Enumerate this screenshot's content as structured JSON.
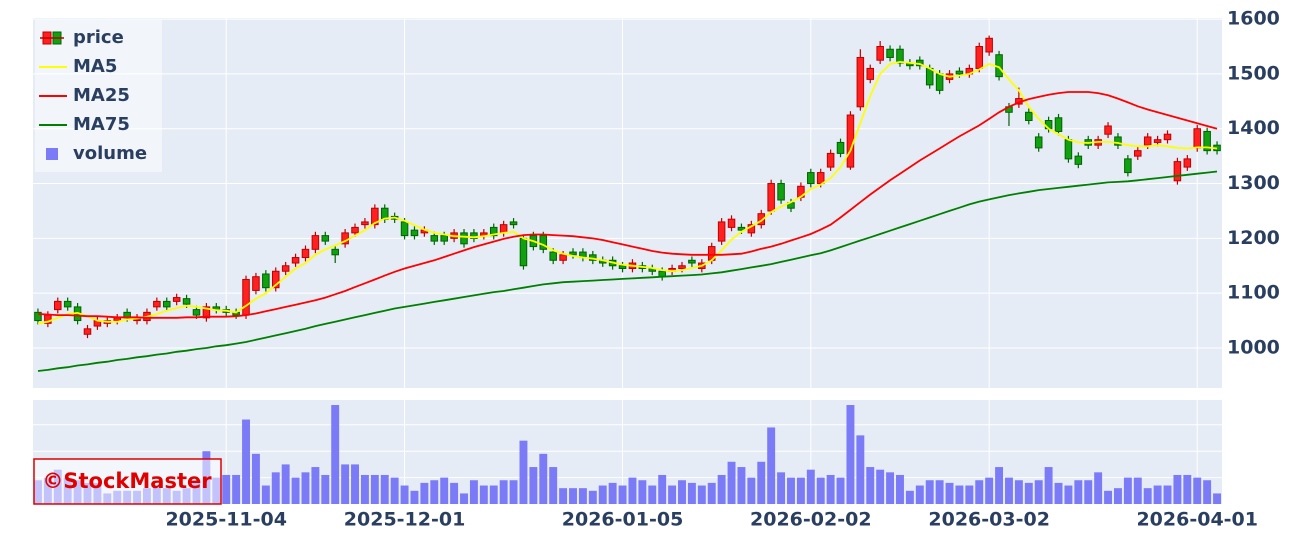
{
  "chart_data": {
    "type": "candlestick",
    "x": [
      "2025-10-06",
      "2025-10-07",
      "2025-10-08",
      "2025-10-09",
      "2025-10-10",
      "2025-10-14",
      "2025-10-15",
      "2025-10-16",
      "2025-10-17",
      "2025-10-20",
      "2025-10-21",
      "2025-10-22",
      "2025-10-23",
      "2025-10-24",
      "2025-10-27",
      "2025-10-28",
      "2025-10-29",
      "2025-10-30",
      "2025-10-31",
      "2025-11-04",
      "2025-11-05",
      "2025-11-06",
      "2025-11-07",
      "2025-11-10",
      "2025-11-11",
      "2025-11-12",
      "2025-11-13",
      "2025-11-14",
      "2025-11-17",
      "2025-11-18",
      "2025-11-19",
      "2025-11-20",
      "2025-11-21",
      "2025-11-25",
      "2025-11-26",
      "2025-11-27",
      "2025-11-28",
      "2025-12-01",
      "2025-12-02",
      "2025-12-03",
      "2025-12-04",
      "2025-12-05",
      "2025-12-08",
      "2025-12-09",
      "2025-12-10",
      "2025-12-11",
      "2025-12-12",
      "2025-12-15",
      "2025-12-16",
      "2025-12-17",
      "2025-12-18",
      "2025-12-19",
      "2025-12-22",
      "2025-12-23",
      "2025-12-24",
      "2025-12-25",
      "2025-12-26",
      "2025-12-29",
      "2025-12-30",
      "2026-01-05",
      "2026-01-06",
      "2026-01-07",
      "2026-01-08",
      "2026-01-09",
      "2026-01-13",
      "2026-01-14",
      "2026-01-15",
      "2026-01-16",
      "2026-01-19",
      "2026-01-20",
      "2026-01-21",
      "2026-01-22",
      "2026-01-23",
      "2026-01-26",
      "2026-01-27",
      "2026-01-28",
      "2026-01-29",
      "2026-01-30",
      "2026-02-02",
      "2026-02-03",
      "2026-02-04",
      "2026-02-05",
      "2026-02-06",
      "2026-02-09",
      "2026-02-10",
      "2026-02-12",
      "2026-02-13",
      "2026-02-16",
      "2026-02-17",
      "2026-02-18",
      "2026-02-19",
      "2026-02-20",
      "2026-02-24",
      "2026-02-25",
      "2026-02-26",
      "2026-02-27",
      "2026-03-02",
      "2026-03-03",
      "2026-03-04",
      "2026-03-05",
      "2026-03-06",
      "2026-03-09",
      "2026-03-10",
      "2026-03-11",
      "2026-03-12",
      "2026-03-13",
      "2026-03-16",
      "2026-03-17",
      "2026-03-18",
      "2026-03-19",
      "2026-03-23",
      "2026-03-24",
      "2026-03-25",
      "2026-03-26",
      "2026-03-27",
      "2026-03-30",
      "2026-03-31",
      "2026-04-01",
      "2026-04-02",
      "2026-04-03"
    ],
    "price": {
      "name": "price",
      "increasing_color": "#ff2020",
      "increasing_line": "#c00000",
      "decreasing_color": "#10a010",
      "decreasing_line": "#006400",
      "open": [
        1065,
        1045,
        1070,
        1085,
        1075,
        1025,
        1040,
        1045,
        1050,
        1065,
        1050,
        1050,
        1075,
        1085,
        1085,
        1090,
        1070,
        1055,
        1075,
        1070,
        1065,
        1060,
        1105,
        1135,
        1110,
        1140,
        1155,
        1165,
        1180,
        1205,
        1180,
        1190,
        1210,
        1225,
        1225,
        1255,
        1240,
        1230,
        1215,
        1210,
        1205,
        1205,
        1200,
        1210,
        1210,
        1205,
        1220,
        1210,
        1230,
        1200,
        1205,
        1205,
        1175,
        1160,
        1175,
        1175,
        1170,
        1160,
        1160,
        1150,
        1145,
        1150,
        1145,
        1140,
        1140,
        1145,
        1160,
        1145,
        1160,
        1195,
        1220,
        1220,
        1210,
        1225,
        1250,
        1300,
        1265,
        1275,
        1320,
        1300,
        1330,
        1375,
        1330,
        1440,
        1490,
        1525,
        1545,
        1545,
        1520,
        1525,
        1510,
        1500,
        1490,
        1505,
        1500,
        1510,
        1540,
        1535,
        1440,
        1445,
        1430,
        1385,
        1415,
        1420,
        1380,
        1350,
        1380,
        1370,
        1390,
        1385,
        1345,
        1350,
        1370,
        1375,
        1380,
        1305,
        1330,
        1365,
        1395,
        1370
      ],
      "high": [
        1072,
        1067,
        1092,
        1092,
        1082,
        1042,
        1057,
        1057,
        1062,
        1072,
        1062,
        1072,
        1092,
        1092,
        1099,
        1097,
        1077,
        1082,
        1082,
        1077,
        1072,
        1132,
        1137,
        1142,
        1147,
        1157,
        1172,
        1187,
        1212,
        1212,
        1187,
        1217,
        1227,
        1237,
        1262,
        1262,
        1247,
        1237,
        1222,
        1222,
        1212,
        1212,
        1217,
        1217,
        1217,
        1217,
        1227,
        1232,
        1237,
        1207,
        1212,
        1212,
        1182,
        1177,
        1182,
        1182,
        1177,
        1167,
        1167,
        1157,
        1162,
        1157,
        1152,
        1147,
        1152,
        1157,
        1167,
        1162,
        1192,
        1237,
        1242,
        1227,
        1232,
        1252,
        1307,
        1307,
        1272,
        1302,
        1327,
        1327,
        1362,
        1382,
        1432,
        1545,
        1517,
        1560,
        1552,
        1552,
        1527,
        1532,
        1517,
        1507,
        1507,
        1512,
        1517,
        1557,
        1570,
        1542,
        1447,
        1475,
        1437,
        1392,
        1422,
        1427,
        1387,
        1357,
        1387,
        1387,
        1412,
        1392,
        1352,
        1367,
        1392,
        1387,
        1397,
        1347,
        1352,
        1407,
        1402,
        1377
      ],
      "low": [
        1043,
        1038,
        1063,
        1068,
        1043,
        1018,
        1033,
        1038,
        1043,
        1048,
        1043,
        1043,
        1068,
        1068,
        1078,
        1073,
        1053,
        1048,
        1063,
        1058,
        1053,
        1053,
        1098,
        1103,
        1103,
        1133,
        1148,
        1158,
        1173,
        1188,
        1155,
        1183,
        1203,
        1218,
        1218,
        1228,
        1228,
        1198,
        1198,
        1203,
        1188,
        1188,
        1193,
        1183,
        1193,
        1198,
        1198,
        1203,
        1218,
        1143,
        1178,
        1173,
        1153,
        1153,
        1163,
        1158,
        1153,
        1148,
        1143,
        1138,
        1138,
        1138,
        1133,
        1123,
        1133,
        1138,
        1148,
        1138,
        1153,
        1188,
        1213,
        1208,
        1203,
        1218,
        1243,
        1263,
        1248,
        1268,
        1293,
        1293,
        1323,
        1348,
        1325,
        1433,
        1483,
        1518,
        1523,
        1513,
        1508,
        1508,
        1473,
        1463,
        1483,
        1493,
        1493,
        1503,
        1533,
        1488,
        1405,
        1438,
        1408,
        1358,
        1393,
        1388,
        1338,
        1328,
        1363,
        1363,
        1383,
        1363,
        1313,
        1343,
        1363,
        1368,
        1373,
        1298,
        1323,
        1358,
        1353,
        1353
      ],
      "close": [
        1050,
        1060,
        1085,
        1075,
        1050,
        1035,
        1050,
        1050,
        1055,
        1055,
        1055,
        1065,
        1085,
        1075,
        1092,
        1080,
        1060,
        1075,
        1070,
        1065,
        1060,
        1125,
        1130,
        1110,
        1140,
        1150,
        1165,
        1180,
        1205,
        1195,
        1170,
        1210,
        1220,
        1230,
        1255,
        1235,
        1235,
        1205,
        1205,
        1215,
        1195,
        1195,
        1210,
        1190,
        1200,
        1210,
        1205,
        1225,
        1225,
        1150,
        1185,
        1180,
        1160,
        1170,
        1170,
        1165,
        1160,
        1155,
        1150,
        1145,
        1155,
        1145,
        1140,
        1130,
        1145,
        1150,
        1155,
        1155,
        1185,
        1230,
        1235,
        1215,
        1225,
        1245,
        1300,
        1270,
        1255,
        1295,
        1300,
        1320,
        1355,
        1355,
        1425,
        1530,
        1510,
        1550,
        1530,
        1520,
        1515,
        1515,
        1480,
        1470,
        1500,
        1500,
        1510,
        1550,
        1565,
        1495,
        1430,
        1455,
        1415,
        1365,
        1400,
        1395,
        1345,
        1335,
        1370,
        1380,
        1405,
        1370,
        1320,
        1360,
        1385,
        1380,
        1390,
        1340,
        1345,
        1400,
        1360,
        1360
      ]
    },
    "series": [
      {
        "name": "MA5",
        "color": "#ffff00",
        "values": [
          1045,
          1048,
          1055,
          1062,
          1064,
          1058,
          1050,
          1048,
          1048,
          1052,
          1054,
          1057,
          1062,
          1068,
          1073,
          1077,
          1075,
          1072,
          1069,
          1068,
          1065,
          1077,
          1090,
          1100,
          1115,
          1130,
          1145,
          1155,
          1170,
          1180,
          1187,
          1195,
          1205,
          1215,
          1228,
          1236,
          1238,
          1232,
          1224,
          1216,
          1210,
          1207,
          1204,
          1203,
          1202,
          1204,
          1207,
          1210,
          1212,
          1200,
          1195,
          1188,
          1178,
          1172,
          1168,
          1165,
          1163,
          1160,
          1156,
          1152,
          1150,
          1148,
          1146,
          1142,
          1140,
          1142,
          1146,
          1150,
          1160,
          1178,
          1198,
          1212,
          1222,
          1232,
          1248,
          1258,
          1266,
          1276,
          1290,
          1298,
          1310,
          1330,
          1360,
          1410,
          1460,
          1500,
          1518,
          1522,
          1520,
          1518,
          1510,
          1500,
          1495,
          1497,
          1500,
          1508,
          1518,
          1512,
          1490,
          1470,
          1440,
          1418,
          1400,
          1390,
          1380,
          1375,
          1374,
          1376,
          1376,
          1374,
          1370,
          1368,
          1368,
          1370,
          1368,
          1365,
          1364,
          1366,
          1366,
          1364
        ]
      },
      {
        "name": "MA25",
        "color": "#ff0000",
        "values": [
          1062,
          1061,
          1060,
          1060,
          1059,
          1058,
          1058,
          1057,
          1056,
          1056,
          1056,
          1055,
          1055,
          1055,
          1055,
          1056,
          1056,
          1057,
          1057,
          1057,
          1058,
          1060,
          1063,
          1067,
          1071,
          1075,
          1079,
          1083,
          1087,
          1092,
          1098,
          1104,
          1111,
          1118,
          1125,
          1132,
          1139,
          1145,
          1150,
          1155,
          1160,
          1166,
          1172,
          1178,
          1184,
          1189,
          1194,
          1199,
          1203,
          1206,
          1207,
          1207,
          1206,
          1205,
          1204,
          1202,
          1200,
          1197,
          1193,
          1189,
          1185,
          1181,
          1177,
          1174,
          1172,
          1171,
          1170,
          1170,
          1170,
          1170,
          1171,
          1172,
          1176,
          1181,
          1185,
          1190,
          1196,
          1202,
          1208,
          1216,
          1225,
          1238,
          1252,
          1266,
          1280,
          1293,
          1306,
          1318,
          1330,
          1342,
          1353,
          1364,
          1375,
          1386,
          1396,
          1406,
          1418,
          1430,
          1440,
          1448,
          1454,
          1458,
          1462,
          1465,
          1467,
          1467,
          1467,
          1465,
          1461,
          1455,
          1448,
          1441,
          1435,
          1430,
          1425,
          1420,
          1415,
          1410,
          1405,
          1400
        ]
      },
      {
        "name": "MA75",
        "color": "#008000",
        "values": [
          958,
          960,
          963,
          965,
          968,
          970,
          973,
          975,
          978,
          980,
          983,
          985,
          988,
          990,
          993,
          995,
          998,
          1000,
          1003,
          1005,
          1008,
          1011,
          1015,
          1019,
          1023,
          1027,
          1031,
          1035,
          1040,
          1044,
          1048,
          1052,
          1056,
          1060,
          1064,
          1068,
          1072,
          1075,
          1078,
          1081,
          1084,
          1087,
          1090,
          1093,
          1096,
          1099,
          1102,
          1104,
          1107,
          1110,
          1113,
          1116,
          1118,
          1120,
          1121,
          1122,
          1123,
          1124,
          1125,
          1126,
          1127,
          1128,
          1129,
          1130,
          1131,
          1132,
          1133,
          1134,
          1136,
          1138,
          1141,
          1144,
          1147,
          1150,
          1153,
          1157,
          1161,
          1165,
          1169,
          1173,
          1178,
          1184,
          1190,
          1196,
          1202,
          1208,
          1214,
          1220,
          1226,
          1232,
          1238,
          1244,
          1250,
          1256,
          1262,
          1267,
          1271,
          1275,
          1279,
          1282,
          1285,
          1288,
          1290,
          1292,
          1294,
          1296,
          1298,
          1300,
          1302,
          1303,
          1304,
          1306,
          1308,
          1310,
          1312,
          1314,
          1316,
          1318,
          1320,
          1322
        ]
      }
    ],
    "volume": {
      "name": "volume",
      "color": "#7b7bf7",
      "ylim": [
        0,
        3.94
      ],
      "grid": [
        1,
        2,
        3
      ],
      "values": [
        0.9,
        1.0,
        1.3,
        1.0,
        0.9,
        0.8,
        0.8,
        0.4,
        0.5,
        0.5,
        0.5,
        0.6,
        0.7,
        0.6,
        0.5,
        0.6,
        0.9,
        2.0,
        1.0,
        1.1,
        1.1,
        3.2,
        1.9,
        0.7,
        1.2,
        1.5,
        1.0,
        1.2,
        1.4,
        1.1,
        3.75,
        1.5,
        1.5,
        1.1,
        1.1,
        1.1,
        1.0,
        0.7,
        0.5,
        0.8,
        0.9,
        1.0,
        0.8,
        0.4,
        0.9,
        0.7,
        0.7,
        0.9,
        0.9,
        2.4,
        1.4,
        1.9,
        1.4,
        0.6,
        0.6,
        0.6,
        0.5,
        0.7,
        0.8,
        0.7,
        1.0,
        0.9,
        0.7,
        1.1,
        0.7,
        0.9,
        0.8,
        0.7,
        0.8,
        1.1,
        1.6,
        1.4,
        1.0,
        1.6,
        2.9,
        1.2,
        1.0,
        1.0,
        1.3,
        1.0,
        1.1,
        1.0,
        3.75,
        2.6,
        1.4,
        1.3,
        1.2,
        1.1,
        0.5,
        0.7,
        0.9,
        0.9,
        0.8,
        0.7,
        0.7,
        0.9,
        1.0,
        1.4,
        1.0,
        0.9,
        0.8,
        0.9,
        1.4,
        0.8,
        0.7,
        0.9,
        0.9,
        1.2,
        0.5,
        0.6,
        1.0,
        1.0,
        0.6,
        0.7,
        0.7,
        1.1,
        1.1,
        1.0,
        0.9,
        0.4
      ]
    },
    "ylim": [
      927,
      1602
    ],
    "yticks": [
      1000,
      1100,
      1200,
      1300,
      1400,
      1500,
      1600
    ],
    "xticks": [
      "2025-11-04",
      "2025-12-01",
      "2026-01-05",
      "2026-02-02",
      "2026-03-02",
      "2026-04-01"
    ],
    "grid": true,
    "legend": "top-left",
    "watermark": "©StockMaster"
  }
}
